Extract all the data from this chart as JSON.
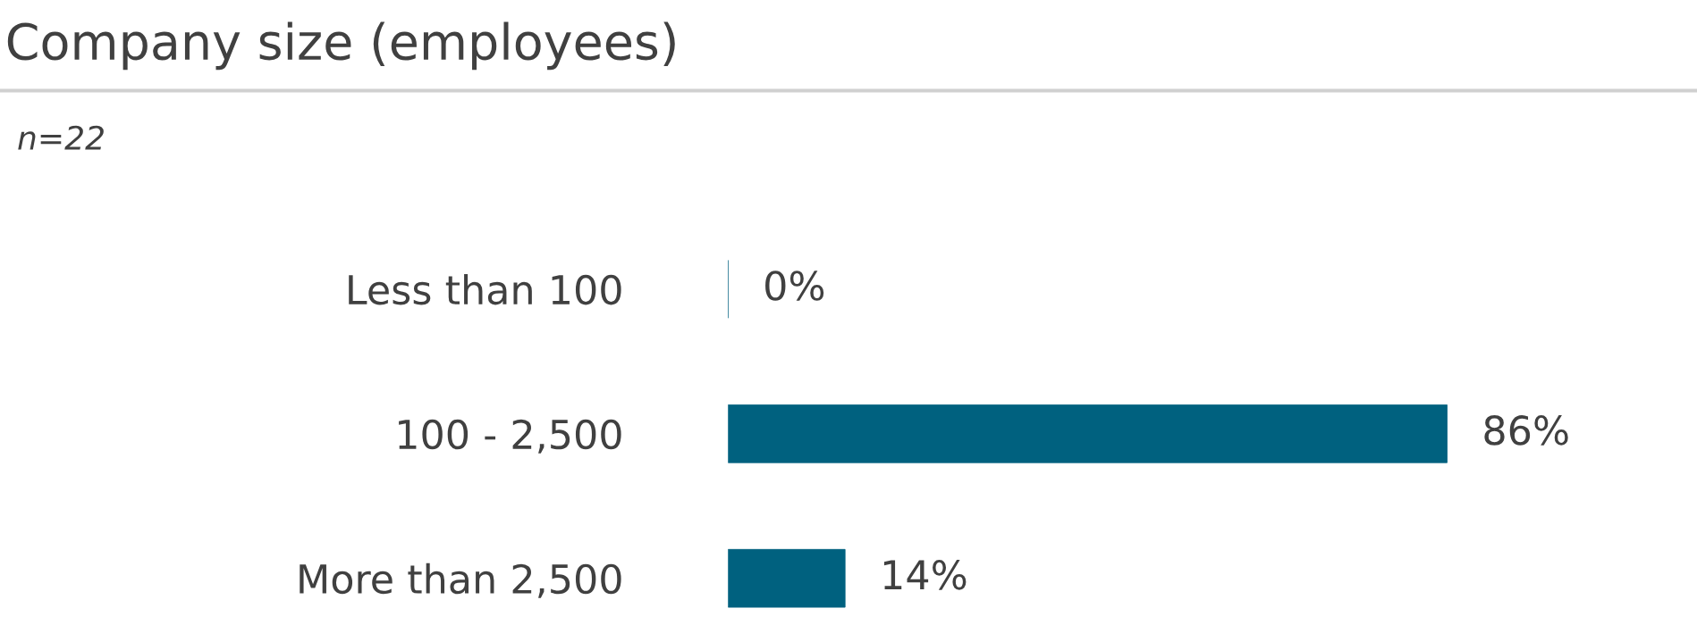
{
  "chart_data": {
    "type": "bar",
    "orientation": "horizontal",
    "title": "Company size (employees)",
    "subtitle": "n=22",
    "categories": [
      "Less than 100",
      "100 - 2,500",
      "More than 2,500"
    ],
    "values": [
      0,
      86,
      14
    ],
    "color": "#00617f",
    "value_labels": [
      "0%",
      "86%",
      "14%"
    ],
    "grid": false,
    "legend": false
  }
}
